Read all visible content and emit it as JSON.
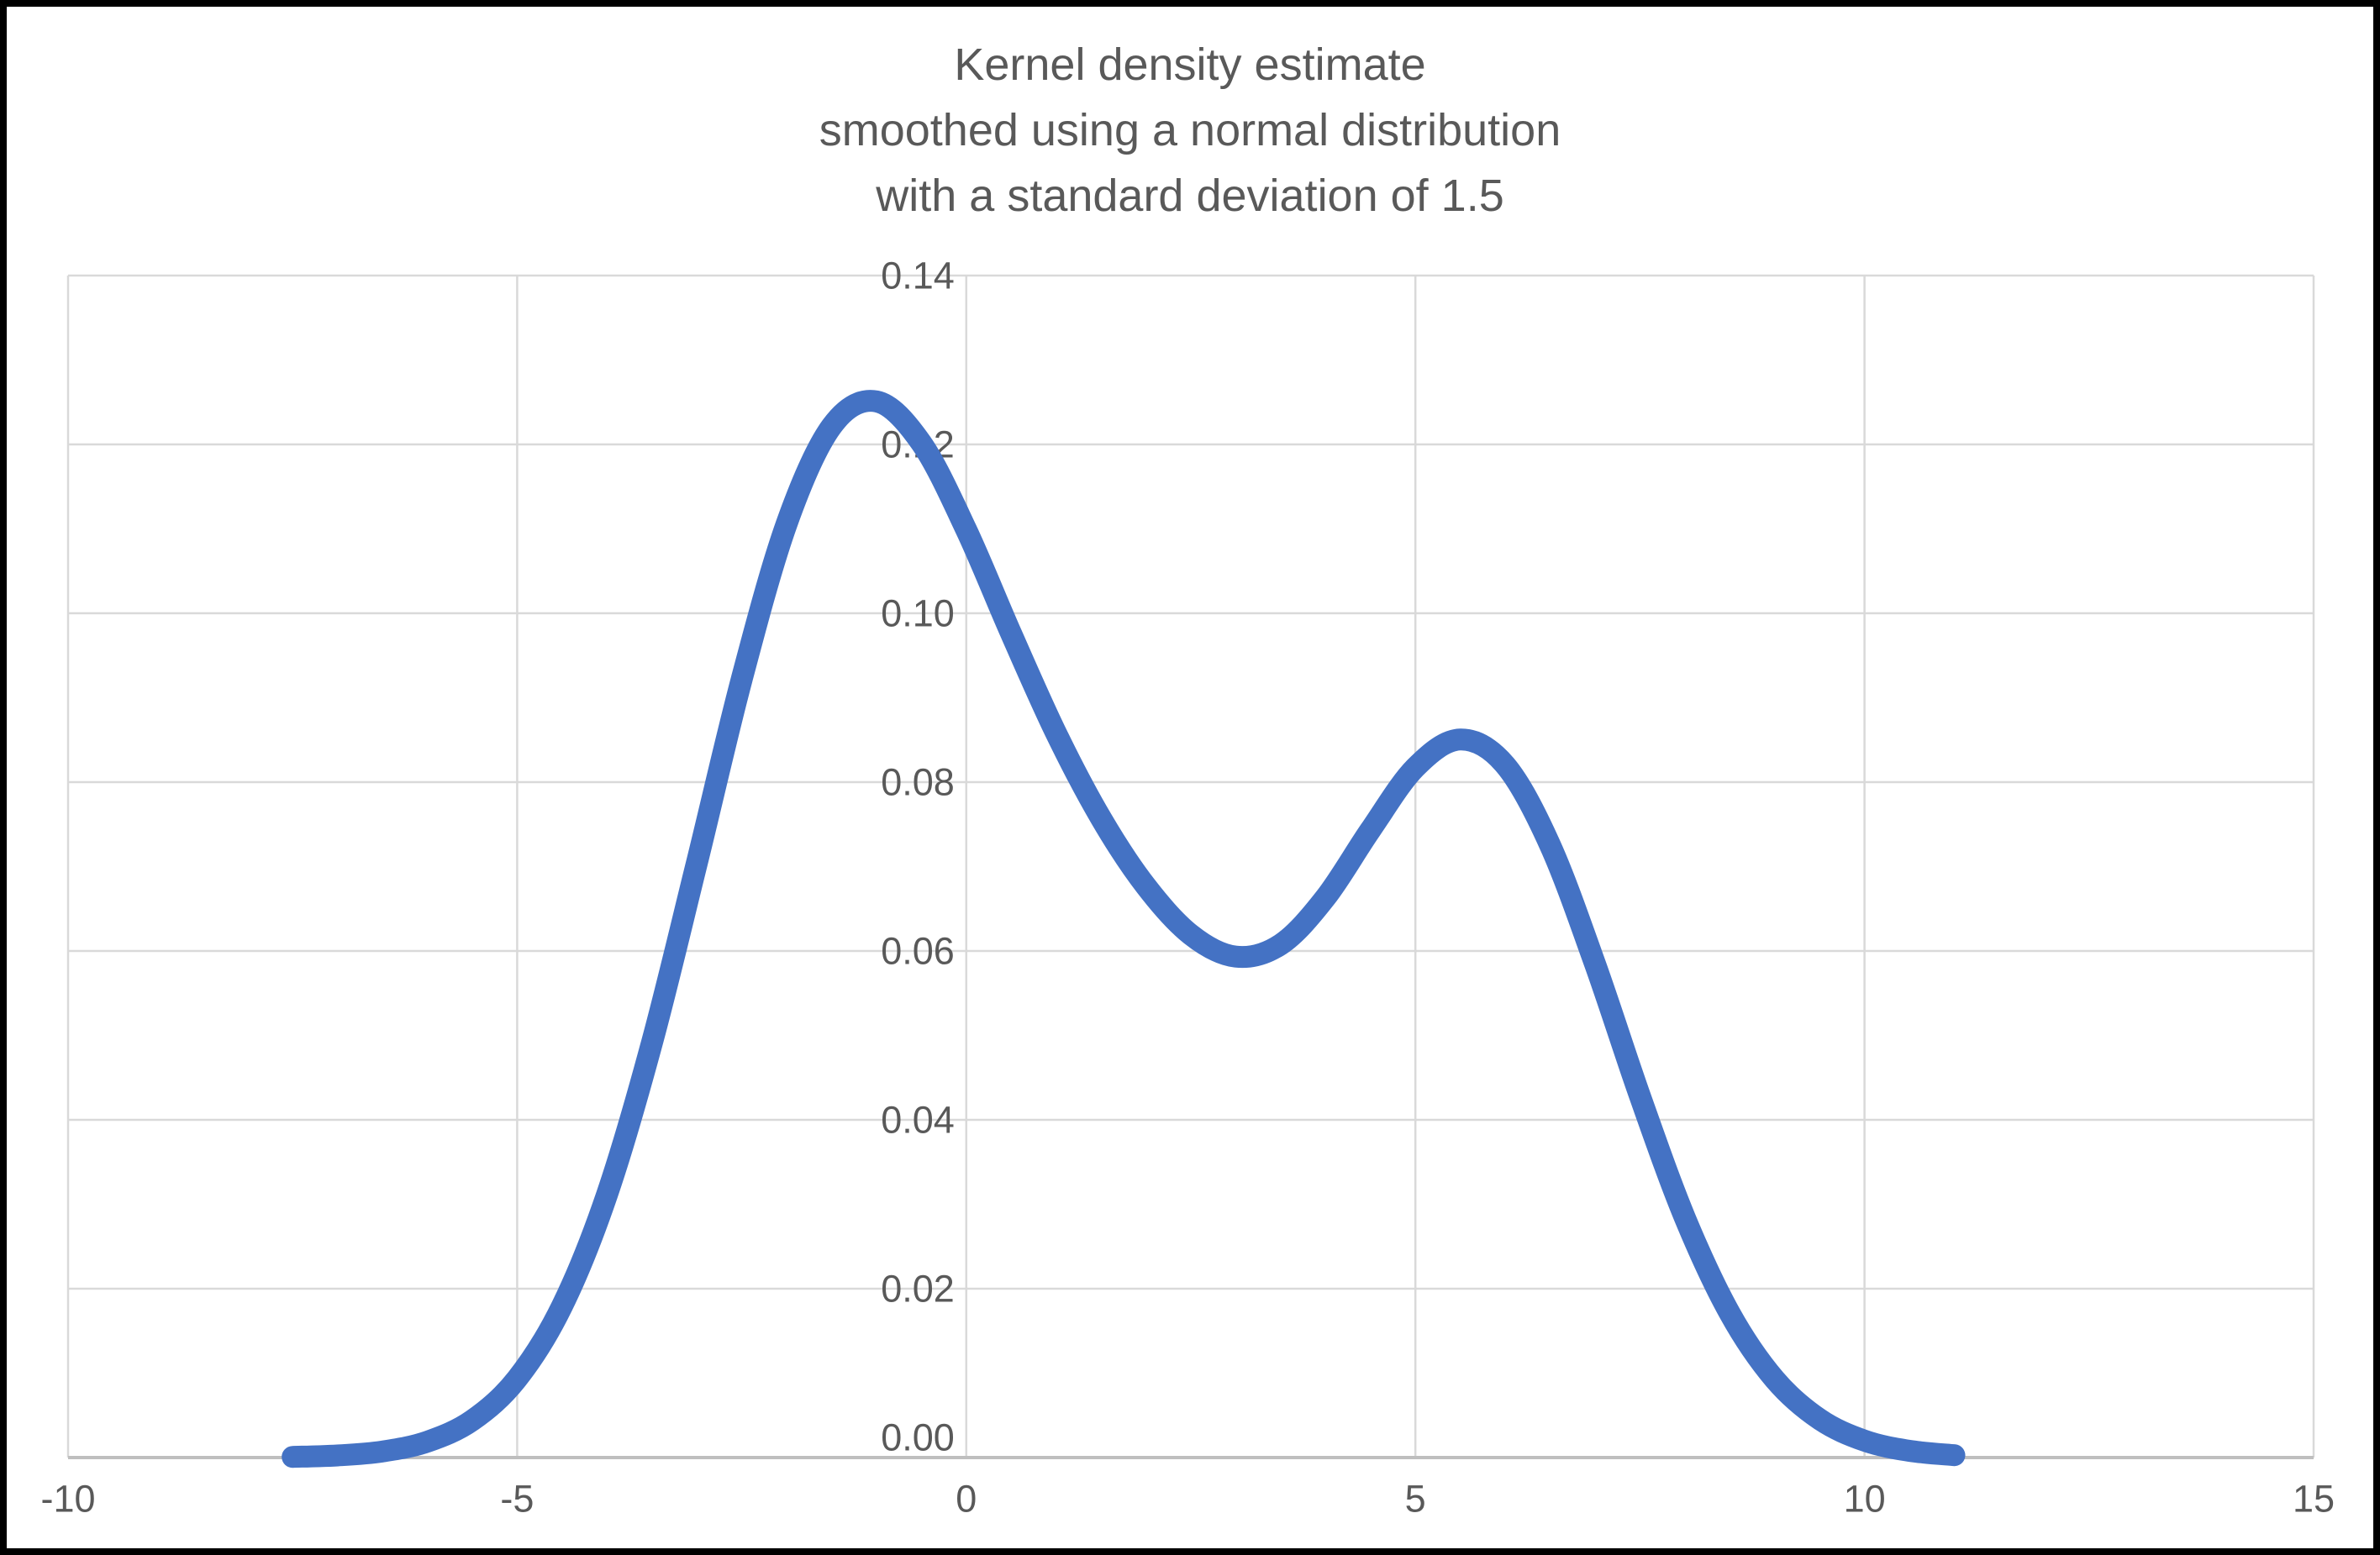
{
  "chart": {
    "title_lines": [
      "Kernel density estimate",
      "smoothed using a normal distribution",
      "with a standard deviation of 1.5"
    ]
  },
  "colors": {
    "series": "#4472C4",
    "gridline": "#D9D9D9",
    "axis_line": "#BFBFBF",
    "tick_text": "#595959",
    "title_text": "#595959",
    "background": "#FFFFFF",
    "frame": "#000000"
  },
  "chart_data": {
    "type": "line",
    "title": "Kernel density estimate smoothed using a normal distribution with a standard deviation of 1.5",
    "xlabel": "",
    "ylabel": "",
    "xlim": [
      -10,
      15
    ],
    "ylim": [
      0,
      0.14
    ],
    "grid": true,
    "legend_position": "none",
    "x_tick_values": [
      -10,
      -5,
      0,
      5,
      10,
      15
    ],
    "x_tick_labels": [
      "-10",
      "-5",
      "0",
      "5",
      "10",
      "15"
    ],
    "y_tick_values": [
      0,
      0.02,
      0.04,
      0.06,
      0.08,
      0.1,
      0.12,
      0.14
    ],
    "y_tick_labels": [
      "0.00",
      "0.02",
      "0.04",
      "0.06",
      "0.08",
      "0.10",
      "0.12",
      "0.14"
    ],
    "series": [
      {
        "name": "Kernel density estimate",
        "color": "#4472C4",
        "x": [
          -7.5,
          -7,
          -6.5,
          -6,
          -5.5,
          -5,
          -4.5,
          -4,
          -3.5,
          -3,
          -2.5,
          -2,
          -1.5,
          -1,
          -0.5,
          0,
          0.5,
          1,
          1.5,
          2,
          2.5,
          3,
          3.5,
          4,
          4.5,
          5,
          5.5,
          6,
          6.5,
          7,
          7.5,
          8,
          8.5,
          9,
          9.5,
          10,
          10.5,
          11
        ],
        "y": [
          8e-05,
          0.00025,
          0.00072,
          0.00188,
          0.00441,
          0.00935,
          0.01794,
          0.03115,
          0.0491,
          0.07042,
          0.0922,
          0.11059,
          0.12213,
          0.12509,
          0.12015,
          0.10988,
          0.09758,
          0.08579,
          0.07572,
          0.06767,
          0.06193,
          0.05933,
          0.06078,
          0.06633,
          0.07435,
          0.08173,
          0.08504,
          0.08202,
          0.07253,
          0.05846,
          0.04282,
          0.02842,
          0.01708,
          0.00927,
          0.00454,
          0.002,
          0.0008,
          0.00028
        ]
      }
    ]
  }
}
